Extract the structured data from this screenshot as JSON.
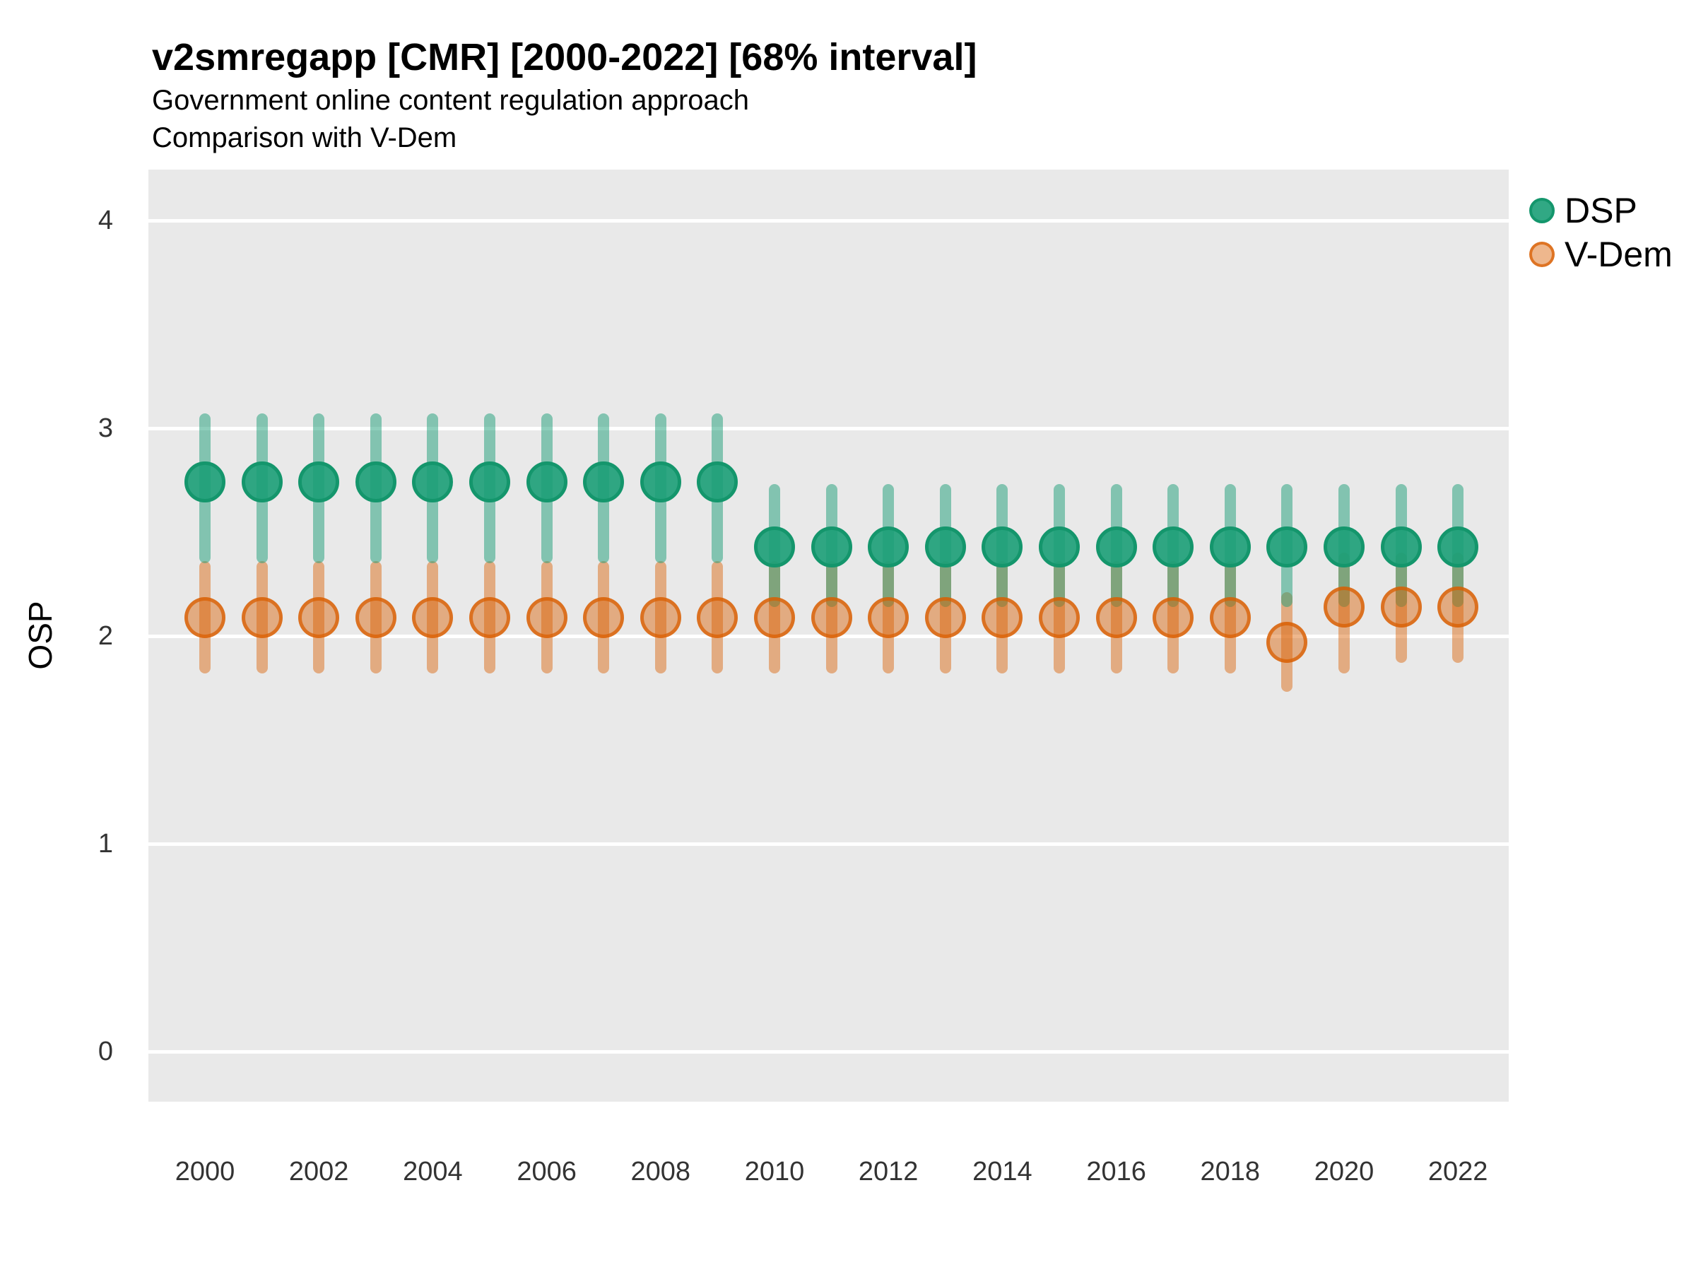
{
  "header": {
    "title": "v2smregapp [CMR] [2000-2022] [68% interval]",
    "subtitle1": "Government online content regulation approach",
    "subtitle2": "Comparison with V-Dem"
  },
  "y_axis": {
    "label": "OSP",
    "ticks": [
      4,
      3,
      2,
      1,
      0
    ]
  },
  "x_axis": {
    "ticks": [
      2000,
      2002,
      2004,
      2006,
      2008,
      2010,
      2012,
      2014,
      2016,
      2018,
      2020,
      2022
    ]
  },
  "legend": {
    "position": "right",
    "entries": [
      {
        "label": "DSP",
        "color": "#1B9E77"
      },
      {
        "label": "V-Dem",
        "color": "#D95F02"
      }
    ]
  },
  "colors": {
    "panel_background": "#E9E9E9",
    "grid": "#FFFFFF",
    "dsp": "#1B9E77",
    "vdem": "#D95F02",
    "text": "#000000",
    "tick_text": "#333333"
  },
  "chart_data": {
    "type": "scatter",
    "subtype": "pointrange",
    "interval": "68%",
    "title": "v2smregapp [CMR] [2000-2022] [68% interval]",
    "xlabel": "",
    "ylabel": "OSP",
    "ylim": [
      0,
      4
    ],
    "grid": true,
    "legend_position": "right",
    "x": [
      2000,
      2001,
      2002,
      2003,
      2004,
      2005,
      2006,
      2007,
      2008,
      2009,
      2010,
      2011,
      2012,
      2013,
      2014,
      2015,
      2016,
      2017,
      2018,
      2019,
      2020,
      2021,
      2022
    ],
    "series": [
      {
        "name": "DSP",
        "color": "#1B9E77",
        "values": [
          2.74,
          2.74,
          2.74,
          2.74,
          2.74,
          2.74,
          2.74,
          2.74,
          2.74,
          2.74,
          2.43,
          2.43,
          2.43,
          2.43,
          2.43,
          2.43,
          2.43,
          2.43,
          2.43,
          2.43,
          2.43,
          2.43,
          2.43
        ],
        "lower": [
          2.35,
          2.35,
          2.35,
          2.35,
          2.35,
          2.35,
          2.35,
          2.35,
          2.35,
          2.35,
          2.14,
          2.14,
          2.14,
          2.14,
          2.14,
          2.14,
          2.14,
          2.14,
          2.14,
          2.14,
          2.14,
          2.14,
          2.14
        ],
        "upper": [
          3.07,
          3.07,
          3.07,
          3.07,
          3.07,
          3.07,
          3.07,
          3.07,
          3.07,
          3.07,
          2.73,
          2.73,
          2.73,
          2.73,
          2.73,
          2.73,
          2.73,
          2.73,
          2.73,
          2.73,
          2.73,
          2.73,
          2.73
        ]
      },
      {
        "name": "V-Dem",
        "color": "#D95F02",
        "values": [
          2.09,
          2.09,
          2.09,
          2.09,
          2.09,
          2.09,
          2.09,
          2.09,
          2.09,
          2.09,
          2.09,
          2.09,
          2.09,
          2.09,
          2.09,
          2.09,
          2.09,
          2.09,
          2.09,
          1.97,
          2.14,
          2.14,
          2.14
        ],
        "lower": [
          1.82,
          1.82,
          1.82,
          1.82,
          1.82,
          1.82,
          1.82,
          1.82,
          1.82,
          1.82,
          1.82,
          1.82,
          1.82,
          1.82,
          1.82,
          1.82,
          1.82,
          1.82,
          1.82,
          1.73,
          1.82,
          1.87,
          1.87
        ],
        "upper": [
          2.36,
          2.36,
          2.36,
          2.36,
          2.36,
          2.36,
          2.36,
          2.36,
          2.36,
          2.36,
          2.36,
          2.36,
          2.36,
          2.36,
          2.36,
          2.36,
          2.36,
          2.36,
          2.36,
          2.21,
          2.4,
          2.4,
          2.4
        ]
      }
    ]
  }
}
